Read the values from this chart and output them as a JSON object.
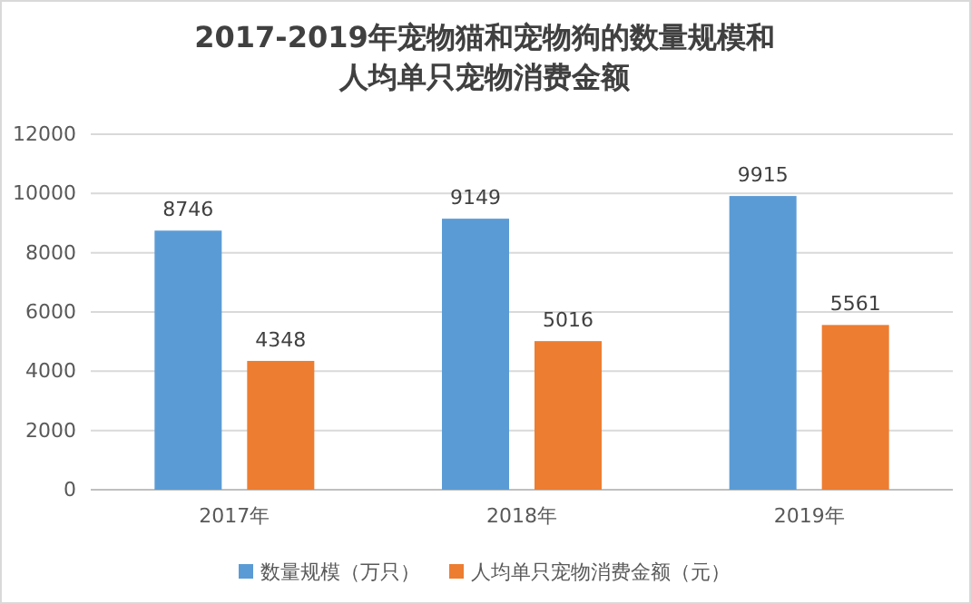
{
  "chart_data": {
    "type": "bar",
    "title": "2017-2019年宠物猫和宠物狗的数量规模和人均单只宠物消费金额",
    "categories": [
      "2017年",
      "2018年",
      "2019年"
    ],
    "series": [
      {
        "name": "数量规模（万只）",
        "color": "#5b9bd5",
        "values": [
          8746,
          9149,
          9915
        ]
      },
      {
        "name": "人均单只宠物消费金额（元）",
        "color": "#ed7d31",
        "values": [
          4348,
          5016,
          5561
        ]
      }
    ],
    "ylim": [
      0,
      12000
    ],
    "yticks": [
      0,
      2000,
      4000,
      6000,
      8000,
      10000,
      12000
    ],
    "grid": "y",
    "legend": "bottom",
    "data_labels": true
  }
}
